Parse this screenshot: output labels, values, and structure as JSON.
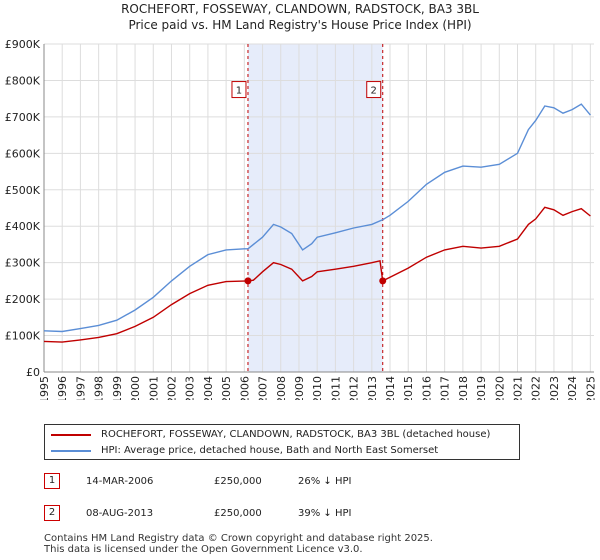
{
  "title_line1": "ROCHEFORT, FOSSEWAY, CLANDOWN, RADSTOCK, BA3 3BL",
  "title_line2": "Price paid vs. HM Land Registry's House Price Index (HPI)",
  "colors": {
    "price": "#c00000",
    "hpi": "#5b8ed6",
    "shade": "#e6ecfa",
    "marker": "#c00000",
    "grid": "#dddddd"
  },
  "chart_data": {
    "type": "line",
    "x_unit": "year",
    "xlim": [
      1995,
      2025.2
    ],
    "ylim": [
      0,
      900000
    ],
    "y_ticks": [
      {
        "value": 0,
        "label": "£0"
      },
      {
        "value": 100000,
        "label": "£100K"
      },
      {
        "value": 200000,
        "label": "£200K"
      },
      {
        "value": 300000,
        "label": "£300K"
      },
      {
        "value": 400000,
        "label": "£400K"
      },
      {
        "value": 500000,
        "label": "£500K"
      },
      {
        "value": 600000,
        "label": "£600K"
      },
      {
        "value": 700000,
        "label": "£700K"
      },
      {
        "value": 800000,
        "label": "£800K"
      },
      {
        "value": 900000,
        "label": "£900K"
      }
    ],
    "x_ticks": [
      "1995",
      "1996",
      "1997",
      "1998",
      "1999",
      "2000",
      "2001",
      "2002",
      "2003",
      "2004",
      "2005",
      "2006",
      "2007",
      "2008",
      "2009",
      "2010",
      "2011",
      "2012",
      "2013",
      "2014",
      "2015",
      "2016",
      "2017",
      "2018",
      "2019",
      "2020",
      "2021",
      "2022",
      "2023",
      "2024",
      "2025"
    ],
    "shaded_range": [
      2006.2,
      2013.6
    ],
    "series": [
      {
        "name": "ROCHEFORT, FOSSEWAY, CLANDOWN, RADSTOCK, BA3 3BL (detached house)",
        "color": "#c00000",
        "points": [
          [
            1995,
            84000
          ],
          [
            1996,
            82000
          ],
          [
            1997,
            88000
          ],
          [
            1998,
            95000
          ],
          [
            1999,
            105000
          ],
          [
            2000,
            125000
          ],
          [
            2001,
            150000
          ],
          [
            2002,
            185000
          ],
          [
            2003,
            215000
          ],
          [
            2004,
            238000
          ],
          [
            2005,
            248000
          ],
          [
            2006.2,
            250000
          ],
          [
            2006.5,
            252000
          ],
          [
            2007,
            275000
          ],
          [
            2007.6,
            300000
          ],
          [
            2008,
            295000
          ],
          [
            2008.6,
            282000
          ],
          [
            2009.2,
            250000
          ],
          [
            2009.7,
            262000
          ],
          [
            2010,
            275000
          ],
          [
            2011,
            282000
          ],
          [
            2012,
            290000
          ],
          [
            2013,
            300000
          ],
          [
            2013.45,
            305000
          ],
          [
            2013.6,
            250000
          ],
          [
            2014,
            260000
          ],
          [
            2015,
            285000
          ],
          [
            2016,
            315000
          ],
          [
            2017,
            335000
          ],
          [
            2018,
            345000
          ],
          [
            2019,
            340000
          ],
          [
            2020,
            345000
          ],
          [
            2021,
            365000
          ],
          [
            2021.6,
            405000
          ],
          [
            2022,
            420000
          ],
          [
            2022.5,
            452000
          ],
          [
            2023,
            445000
          ],
          [
            2023.5,
            430000
          ],
          [
            2024,
            440000
          ],
          [
            2024.5,
            448000
          ],
          [
            2025,
            428000
          ]
        ]
      },
      {
        "name": "HPI: Average price, detached house, Bath and North East Somerset",
        "color": "#5b8ed6",
        "points": [
          [
            1995,
            113000
          ],
          [
            1996,
            111000
          ],
          [
            1997,
            119000
          ],
          [
            1998,
            128000
          ],
          [
            1999,
            142000
          ],
          [
            2000,
            170000
          ],
          [
            2001,
            205000
          ],
          [
            2002,
            250000
          ],
          [
            2003,
            290000
          ],
          [
            2004,
            322000
          ],
          [
            2005,
            335000
          ],
          [
            2006,
            338000
          ],
          [
            2006.2,
            338000
          ],
          [
            2007,
            370000
          ],
          [
            2007.6,
            405000
          ],
          [
            2008,
            398000
          ],
          [
            2008.6,
            380000
          ],
          [
            2009.2,
            335000
          ],
          [
            2009.7,
            352000
          ],
          [
            2010,
            370000
          ],
          [
            2011,
            382000
          ],
          [
            2012,
            395000
          ],
          [
            2013,
            405000
          ],
          [
            2013.6,
            418000
          ],
          [
            2014,
            430000
          ],
          [
            2015,
            468000
          ],
          [
            2016,
            515000
          ],
          [
            2017,
            548000
          ],
          [
            2018,
            565000
          ],
          [
            2019,
            562000
          ],
          [
            2020,
            570000
          ],
          [
            2021,
            600000
          ],
          [
            2021.6,
            665000
          ],
          [
            2022,
            690000
          ],
          [
            2022.5,
            730000
          ],
          [
            2023,
            725000
          ],
          [
            2023.5,
            710000
          ],
          [
            2024,
            720000
          ],
          [
            2024.5,
            735000
          ],
          [
            2025,
            705000
          ]
        ]
      }
    ],
    "sales": [
      {
        "number": "1",
        "x": 2006.2,
        "y": 250000
      },
      {
        "number": "2",
        "x": 2013.6,
        "y": 250000
      }
    ],
    "vlines": [
      2006.2,
      2013.6
    ],
    "badge_y": 775000
  },
  "legend": [
    {
      "label": "ROCHEFORT, FOSSEWAY, CLANDOWN, RADSTOCK, BA3 3BL (detached house)"
    },
    {
      "label": "HPI: Average price, detached house, Bath and North East Somerset"
    }
  ],
  "transactions": [
    {
      "number": "1",
      "date": "14-MAR-2006",
      "price": "£250,000",
      "hpi": "26% ↓ HPI"
    },
    {
      "number": "2",
      "date": "08-AUG-2013",
      "price": "£250,000",
      "hpi": "39% ↓ HPI"
    }
  ],
  "footer": {
    "line1": "Contains HM Land Registry data © Crown copyright and database right 2025.",
    "line2": "This data is licensed under the Open Government Licence v3.0."
  }
}
